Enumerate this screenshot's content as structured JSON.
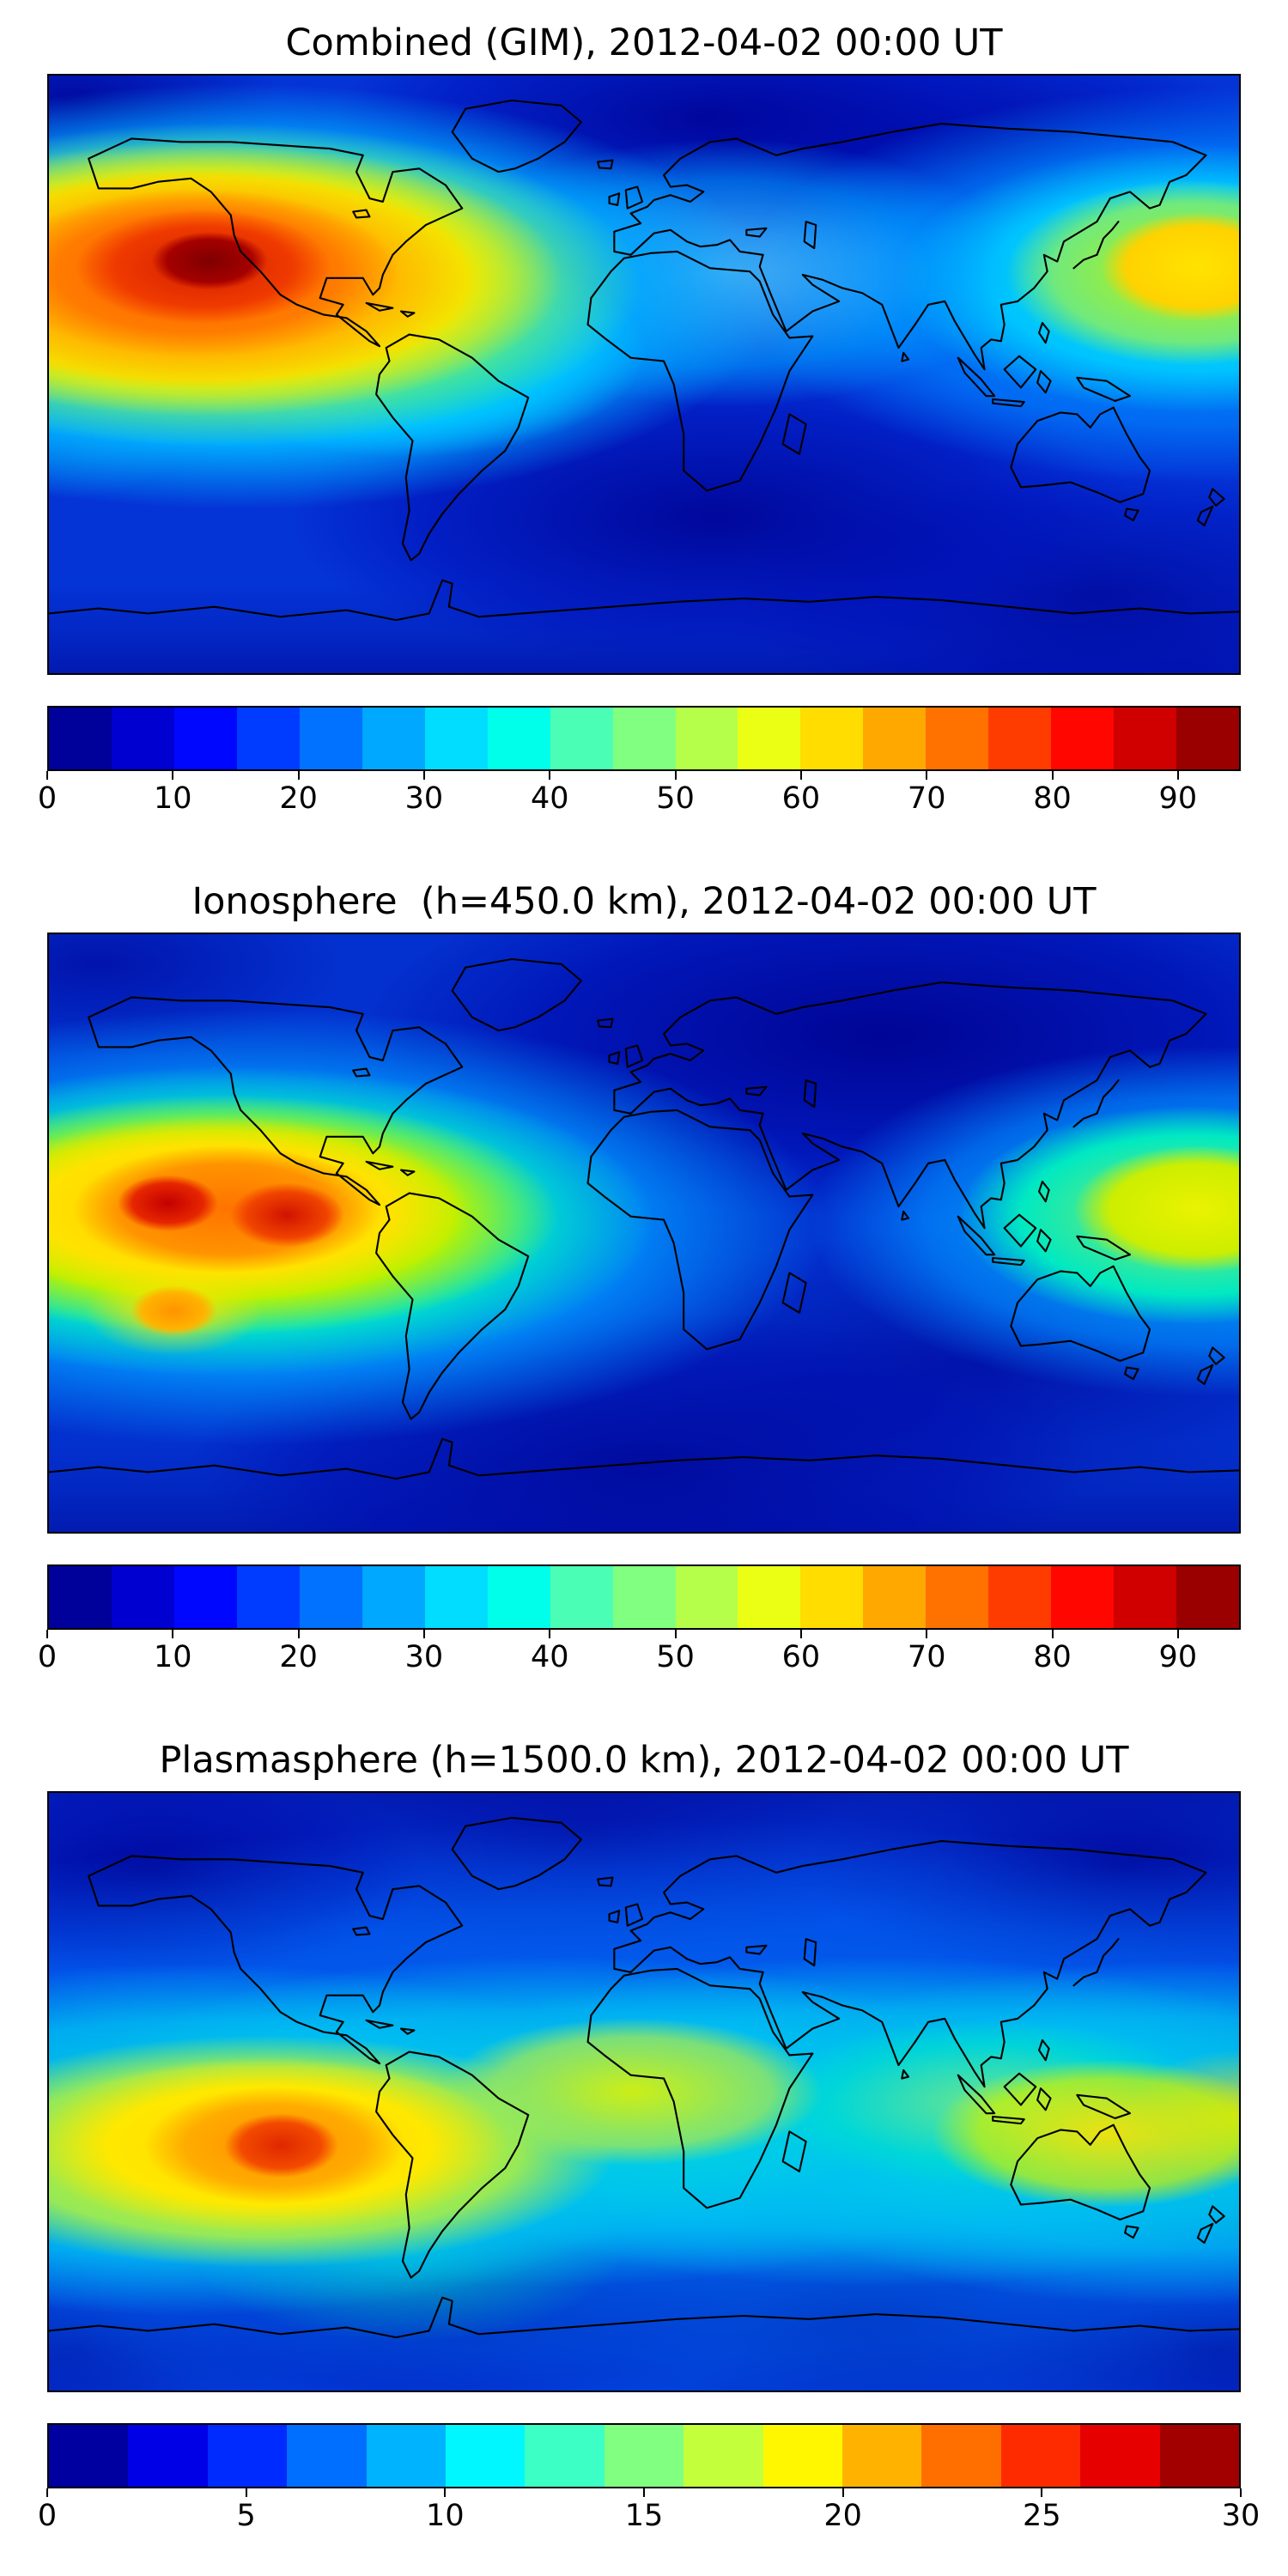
{
  "figure": {
    "background": "#ffffff",
    "coastline_color": "#000000",
    "panels": [
      {
        "title": "Combined (GIM), 2012-04-02 00:00 UT",
        "colorbar": {
          "vmin": 0,
          "vmax": 95,
          "level_step": 5,
          "tick_values": [
            0,
            10,
            20,
            30,
            40,
            50,
            60,
            70,
            80,
            90
          ],
          "segment_colors": [
            "#00009a",
            "#0000d0",
            "#0007ff",
            "#003cff",
            "#0072ff",
            "#00a8ff",
            "#00ddff",
            "#00ffeb",
            "#4affb5",
            "#80ff80",
            "#b5ff4a",
            "#ebff14",
            "#ffdd00",
            "#ffa800",
            "#ff7200",
            "#ff3c00",
            "#ff0700",
            "#d00000",
            "#9a0000"
          ]
        }
      },
      {
        "title": "Ionosphere  (h=450.0 km), 2012-04-02 00:00 UT",
        "colorbar": {
          "vmin": 0,
          "vmax": 95,
          "level_step": 5,
          "tick_values": [
            0,
            10,
            20,
            30,
            40,
            50,
            60,
            70,
            80,
            90
          ],
          "segment_colors": [
            "#00009a",
            "#0000d0",
            "#0007ff",
            "#003cff",
            "#0072ff",
            "#00a8ff",
            "#00ddff",
            "#00ffeb",
            "#4affb5",
            "#80ff80",
            "#b5ff4a",
            "#ebff14",
            "#ffdd00",
            "#ffa800",
            "#ff7200",
            "#ff3c00",
            "#ff0700",
            "#d00000",
            "#9a0000"
          ]
        }
      },
      {
        "title": "Plasmasphere (h=1500.0 km), 2012-04-02 00:00 UT",
        "colorbar": {
          "vmin": 0,
          "vmax": 30,
          "level_step": 2,
          "tick_values": [
            0,
            5,
            10,
            15,
            20,
            25,
            30
          ],
          "segment_colors": [
            "#0000a1",
            "#0000e6",
            "#002bff",
            "#006fff",
            "#00b3ff",
            "#00f7ff",
            "#3bffc4",
            "#80ff80",
            "#c4ff3b",
            "#fff700",
            "#ffb300",
            "#ff6f00",
            "#ff2b00",
            "#e60000",
            "#a20000"
          ]
        }
      }
    ]
  },
  "chart_data": [
    {
      "type": "heatmap",
      "subtype": "filled-contour global map with coastlines",
      "title": "Combined (GIM), 2012-04-02 00:00 UT",
      "projection": "equirectangular",
      "lon_range": [
        -180,
        180
      ],
      "lat_range": [
        -90,
        90
      ],
      "colormap": "jet",
      "value_range": [
        0,
        95
      ],
      "contour_level_step": 5,
      "colorbar_ticks": [
        0,
        10,
        20,
        30,
        40,
        50,
        60,
        70,
        80,
        90
      ],
      "approx_features": [
        {
          "description": "primary maximum (dark red core) over eastern Pacific west of Mexico/California",
          "approx_lon": -132,
          "approx_lat": 25,
          "approx_value": 95
        },
        {
          "description": "broad orange/yellow halo around primary maximum",
          "approx_lon": -135,
          "approx_lat": 22,
          "approx_value": 70
        },
        {
          "description": "secondary yellow maximum at right edge (west Pacific, wraps around)",
          "approx_lon": 172,
          "approx_lat": 22,
          "approx_value": 68
        },
        {
          "description": "cyan/green ridge extending toward northern South America",
          "approx_lon": -72,
          "approx_lat": 8,
          "approx_value": 45
        },
        {
          "description": "light-cyan patch over North Atlantic / Europe sector",
          "approx_lon": 25,
          "approx_lat": 30,
          "approx_value": 35
        },
        {
          "description": "dark-blue minimum over Siberia / high northern latitudes",
          "approx_lon": 60,
          "approx_lat": 70,
          "approx_value": 5
        },
        {
          "description": "dark-blue minimum in southern Indian/Atlantic ocean",
          "approx_lon": 20,
          "approx_lat": -45,
          "approx_value": 5
        },
        {
          "description": "general ocean background",
          "approx_value": 15
        }
      ]
    },
    {
      "type": "heatmap",
      "subtype": "filled-contour global map with coastlines",
      "title": "Ionosphere  (h=450.0 km), 2012-04-02 00:00 UT",
      "projection": "equirectangular",
      "lon_range": [
        -180,
        180
      ],
      "lat_range": [
        -90,
        90
      ],
      "colormap": "jet",
      "value_range": [
        0,
        95
      ],
      "contour_level_step": 5,
      "colorbar_ticks": [
        0,
        10,
        20,
        30,
        40,
        50,
        60,
        70,
        80,
        90
      ],
      "approx_features": [
        {
          "description": "red core of equatorial anomaly, eastern Pacific",
          "approx_lon": -144,
          "approx_lat": 8,
          "approx_value": 82
        },
        {
          "description": "second red core closer to South America",
          "approx_lon": -108,
          "approx_lat": 4,
          "approx_value": 80
        },
        {
          "description": "small orange southern-crest spot",
          "approx_lon": -142,
          "approx_lat": -24,
          "approx_value": 65
        },
        {
          "description": "yellow band surrounding the anomaly",
          "approx_lon": -130,
          "approx_lat": 5,
          "approx_value": 60
        },
        {
          "description": "yellow-green maximum at right edge (west Pacific, wraps around)",
          "approx_lon": 172,
          "approx_lat": 6,
          "approx_value": 58
        },
        {
          "description": "large dark-blue minimum over central/eastern Asia",
          "approx_lon": 70,
          "approx_lat": 58,
          "approx_value": 5
        },
        {
          "description": "dark-blue minimum south-central oceans",
          "approx_lon": 0,
          "approx_lat": -68,
          "approx_value": 5
        },
        {
          "description": "general ocean background",
          "approx_value": 12
        }
      ]
    },
    {
      "type": "heatmap",
      "subtype": "filled-contour global map with coastlines",
      "title": "Plasmasphere (h=1500.0 km), 2012-04-02 00:00 UT",
      "projection": "equirectangular",
      "lon_range": [
        -180,
        180
      ],
      "lat_range": [
        -90,
        90
      ],
      "colormap": "jet",
      "value_range": [
        0,
        30
      ],
      "contour_level_step": 2,
      "colorbar_ticks": [
        0,
        5,
        10,
        15,
        20,
        25,
        30
      ],
      "approx_features": [
        {
          "description": "orange/red maximum over western South America / east Pacific",
          "approx_lon": -110,
          "approx_lat": -16,
          "approx_value": 27
        },
        {
          "description": "yellow halo around the maximum",
          "approx_lon": -115,
          "approx_lat": -16,
          "approx_value": 22
        },
        {
          "description": "yellow-green patch over northern Africa",
          "approx_lon": -4,
          "approx_lat": 0,
          "approx_value": 20
        },
        {
          "description": "yellow patch over maritime southeast Asia / west Pacific",
          "approx_lon": 140,
          "approx_lat": -13,
          "approx_value": 21
        },
        {
          "description": "yellow patch at right map edge",
          "approx_lon": 178,
          "approx_lat": -8,
          "approx_value": 21
        },
        {
          "description": "cyan-green equatorial belt spanning all longitudes",
          "approx_lat_band": [
            -35,
            10
          ],
          "approx_value": 15
        },
        {
          "description": "dark-blue minima at high latitudes (both hemispheres)",
          "approx_value": 4
        },
        {
          "description": "general mid-latitude background",
          "approx_value": 8
        }
      ]
    }
  ]
}
